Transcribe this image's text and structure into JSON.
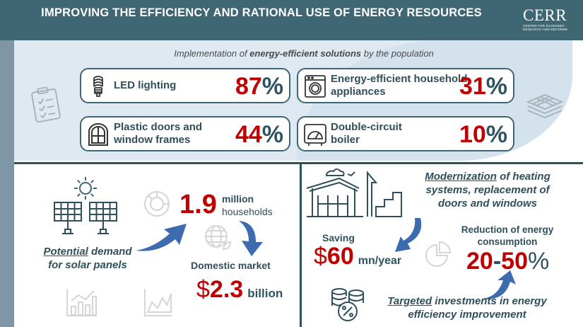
{
  "header": {
    "title": "IMPROVING THE EFFICIENCY AND RATIONAL USE OF ENERGY RESOURCES",
    "logo_text": "CERR",
    "logo_subtext": "CENTER FOR ECONOMIC RESEARCH AND REFORMS"
  },
  "top": {
    "subtitle_pre": "Implementation of ",
    "subtitle_bold": "energy-efficient solutions",
    "subtitle_post": " by the population",
    "cards": [
      {
        "label": "LED lighting",
        "value": "87",
        "icon": "led-bulb-icon"
      },
      {
        "label": "Energy-efficient household appliances",
        "value": "31",
        "icon": "washing-machine-icon"
      },
      {
        "label": "Plastic doors and window frames",
        "value": "44",
        "icon": "window-icon"
      },
      {
        "label": "Double-circuit boiler",
        "value": "10",
        "icon": "boiler-gauge-icon"
      }
    ],
    "percent_sign": "%"
  },
  "left": {
    "households_value": "1.9",
    "households_unit_line1": "million",
    "households_unit_line2": "households",
    "potential_underlined": "Potential",
    "potential_rest": " demand",
    "potential_line2": "for solar panels",
    "market_label": "Domestic market",
    "market_currency": "$",
    "market_value": "2.3",
    "market_unit": "billion"
  },
  "right": {
    "modern_underlined": "Modernization",
    "modern_rest_line1": " of heating",
    "modern_line2": "systems, replacement of",
    "modern_line3": "doors and windows",
    "saving_label": "Saving",
    "saving_currency": "$",
    "saving_value": "60",
    "saving_unit": "mn/year",
    "reduction_line1": "Reduction of energy",
    "reduction_line2": "consumption",
    "reduction_from": "20",
    "reduction_dash": "-",
    "reduction_to": "50",
    "reduction_pct": "%",
    "targeted_underlined": "Targeted",
    "targeted_rest": " investments in energy",
    "targeted_line2": "efficiency improvement"
  }
}
